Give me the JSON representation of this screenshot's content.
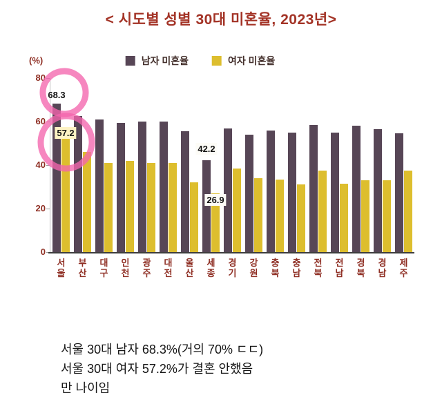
{
  "title": "< 시도별 성별 30대 미혼율, 2023년>",
  "chart_data": {
    "type": "bar",
    "categories": [
      "서울",
      "부산",
      "대구",
      "인천",
      "광주",
      "대전",
      "울산",
      "세종",
      "경기",
      "강원",
      "충북",
      "충남",
      "전북",
      "전남",
      "경북",
      "경남",
      "제주"
    ],
    "series": [
      {
        "name": "남자 미혼율",
        "color": "#574656",
        "values": [
          68.3,
          62.5,
          61.0,
          59.5,
          60.0,
          60.0,
          55.5,
          42.2,
          57.0,
          54.0,
          56.0,
          55.0,
          58.5,
          55.0,
          58.0,
          56.5,
          54.5
        ]
      },
      {
        "name": "여자 미혼율",
        "color": "#ddbe2e",
        "values": [
          57.2,
          46.0,
          41.0,
          42.0,
          41.0,
          41.0,
          32.0,
          26.9,
          38.5,
          34.0,
          33.5,
          31.0,
          37.5,
          31.5,
          33.0,
          33.0,
          37.5
        ]
      }
    ],
    "ylabel": "(%)",
    "ylim": [
      0,
      80
    ],
    "yticks": [
      0,
      20,
      40,
      60,
      80
    ],
    "grid": false,
    "legend_position": "top",
    "data_labels": [
      {
        "category": "서울",
        "series": 0,
        "text": "68.3",
        "bg": "none",
        "dy": 4
      },
      {
        "category": "서울",
        "series": 1,
        "text": "57.2",
        "bg": "yellow",
        "dy": -16
      },
      {
        "category": "세종",
        "series": 0,
        "text": "42.2",
        "bg": "white",
        "dy": 8
      },
      {
        "category": "세종",
        "series": 1,
        "text": "26.9",
        "bg": "white",
        "dy": -18
      }
    ]
  },
  "annotation": {
    "type": "hand-drawn-circles",
    "color": "#f365ad",
    "targets": [
      "68.3 label",
      "57.2 label"
    ]
  },
  "caption_lines": [
    "서울 30대 남자 68.3%(거의 70% ㄷㄷ)",
    "서울 30대 여자 57.2%가 결혼 안했음",
    "만 나이임"
  ]
}
